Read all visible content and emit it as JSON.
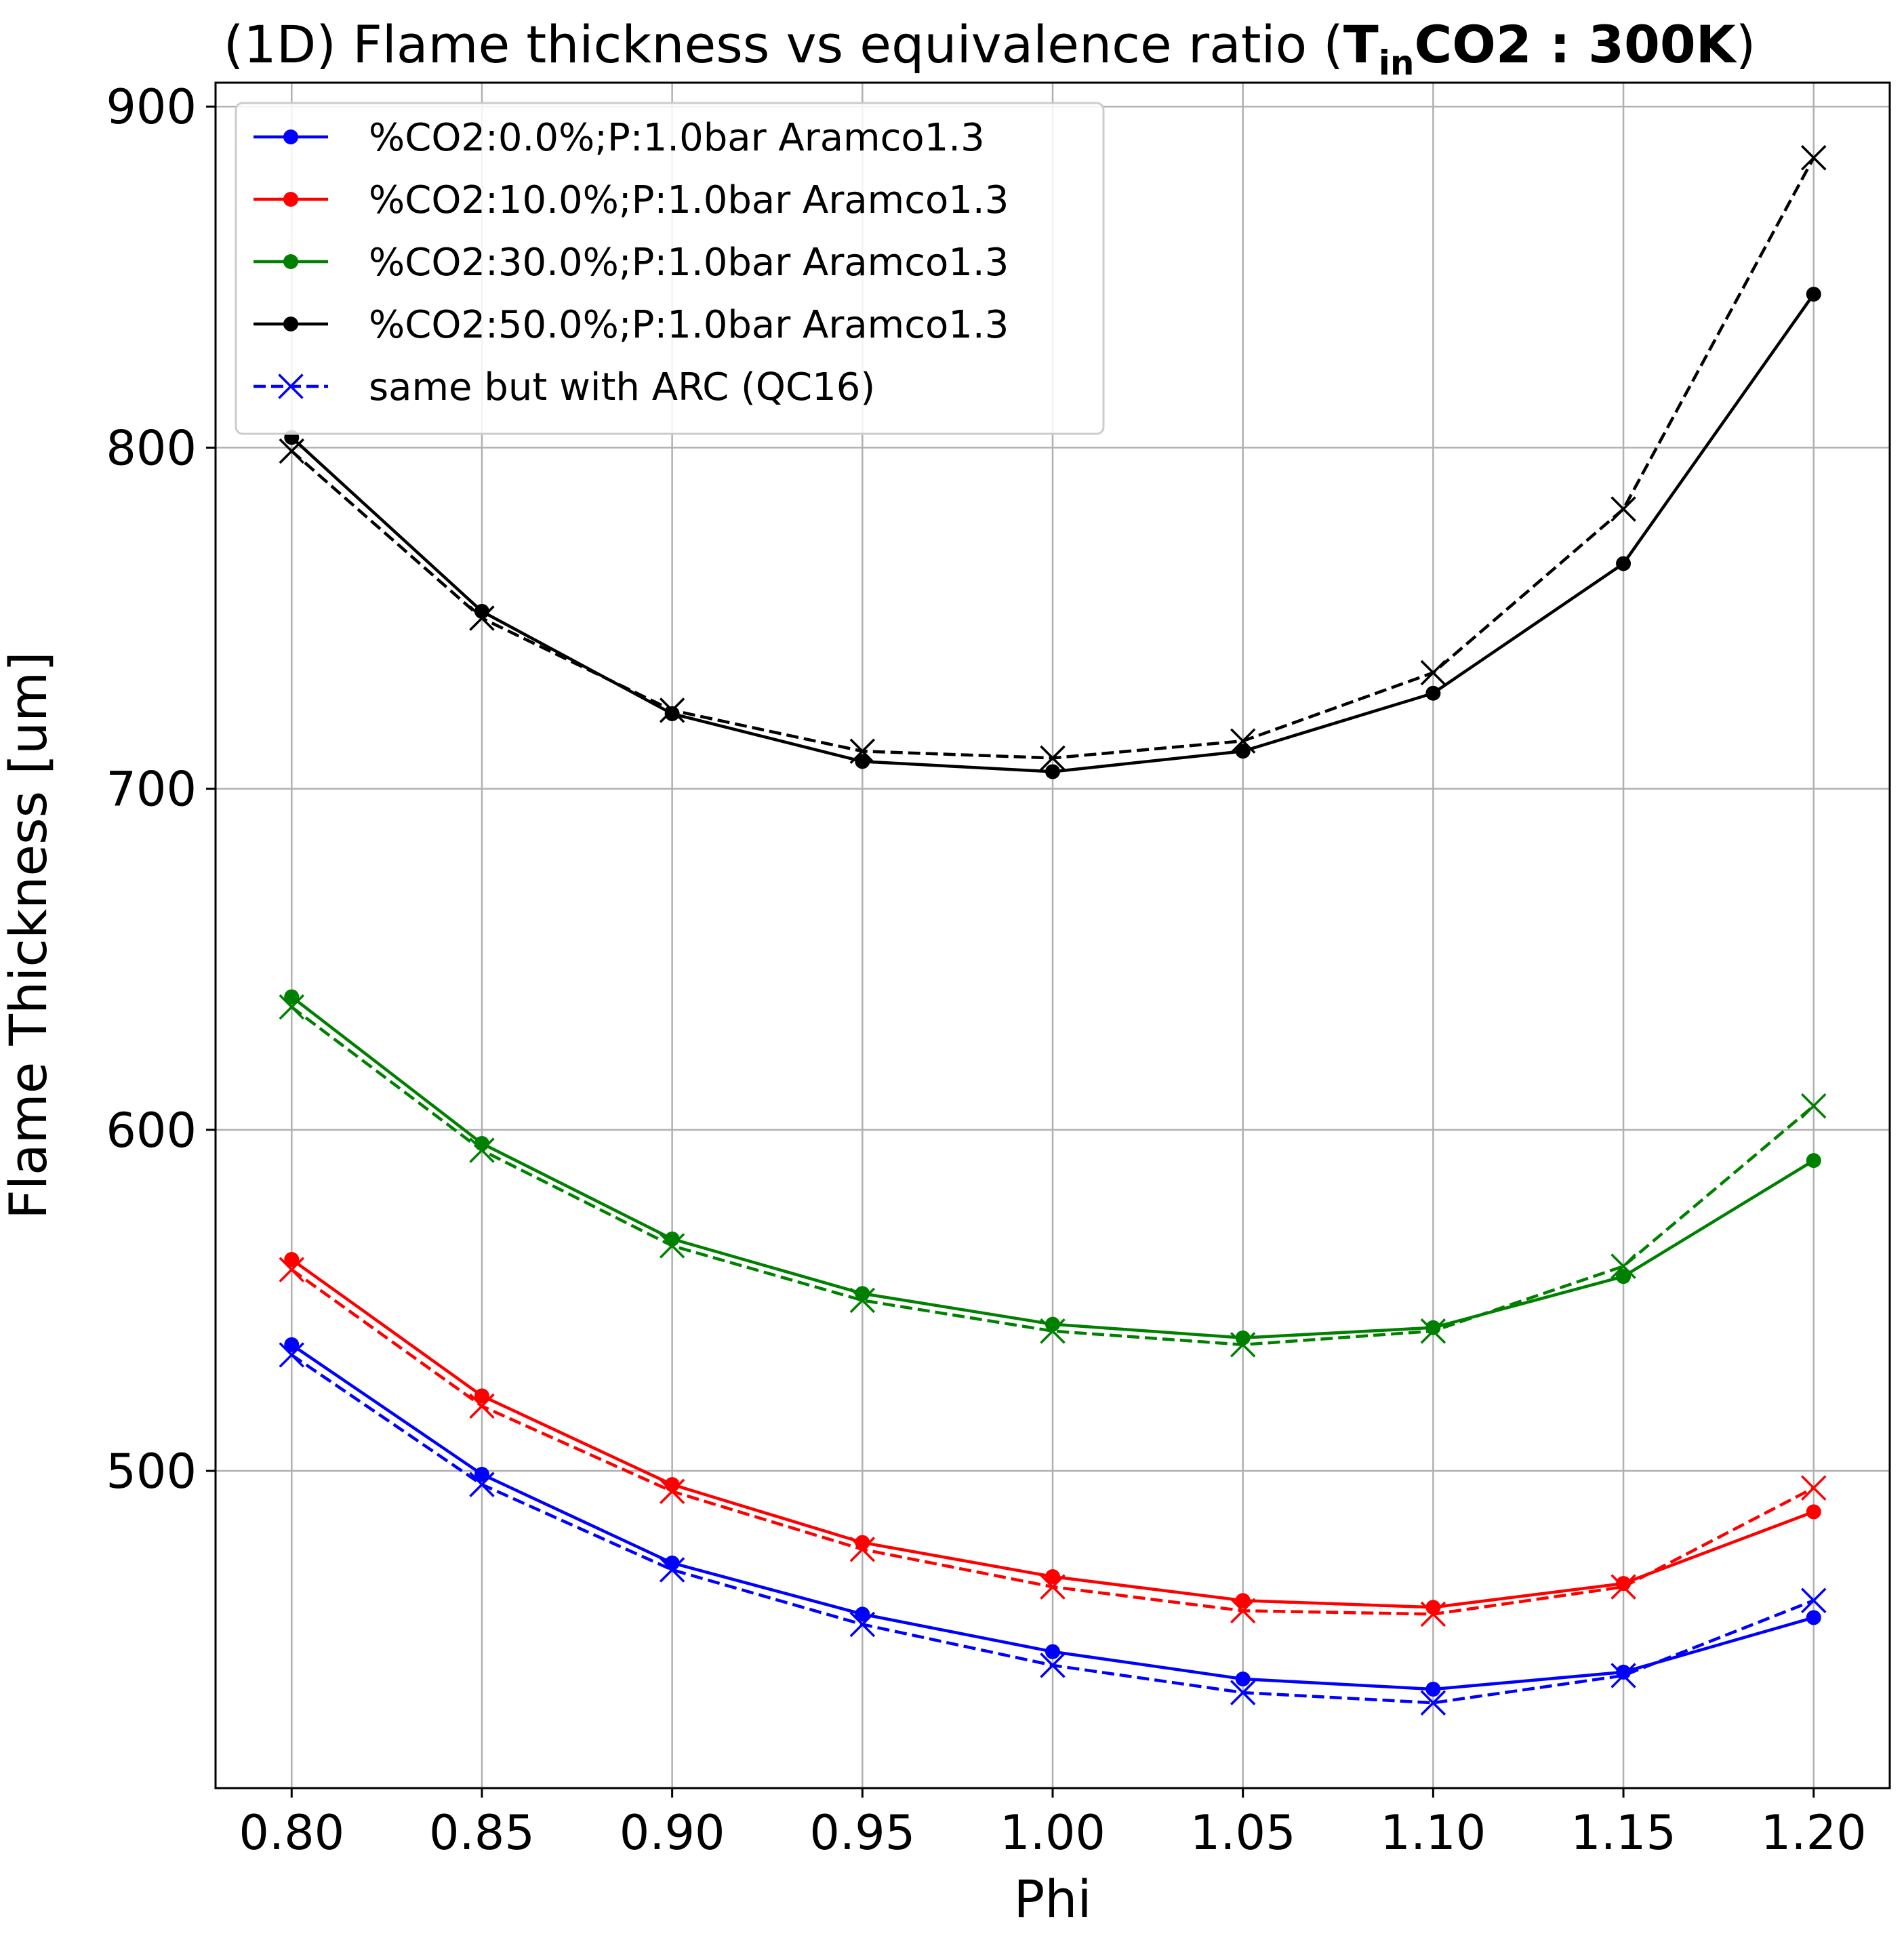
{
  "chart_data": {
    "type": "line",
    "title": {
      "prefix": "(1D) Flame thickness vs equivalence ratio (",
      "bold_main": "T",
      "bold_sub": "in",
      "bold_rest": "CO2 : 300K",
      "suffix": ")"
    },
    "xlabel": "Phi",
    "ylabel": "Flame Thickness [um]",
    "xlim": [
      0.78,
      1.22
    ],
    "ylim": [
      407,
      907
    ],
    "xticks": [
      "0.80",
      "0.85",
      "0.90",
      "0.95",
      "1.00",
      "1.05",
      "1.10",
      "1.15",
      "1.20"
    ],
    "yticks": [
      "500",
      "600",
      "700",
      "800",
      "900"
    ],
    "grid": true,
    "legend_position": "upper-left",
    "x": [
      0.8,
      0.85,
      0.9,
      0.95,
      1.0,
      1.05,
      1.1,
      1.15,
      1.2
    ],
    "series": [
      {
        "name": "%CO2:0.0%;P:1.0bar Aramco1.3",
        "color": "#0000ff",
        "marker": "circle",
        "line": "solid",
        "values": [
          537,
          499,
          473,
          458,
          447,
          439,
          436,
          441,
          457
        ]
      },
      {
        "name": "%CO2:10.0%;P:1.0bar Aramco1.3",
        "color": "#ff0000",
        "marker": "circle",
        "line": "solid",
        "values": [
          562,
          522,
          496,
          479,
          469,
          462,
          460,
          467,
          488
        ]
      },
      {
        "name": "%CO2:30.0%;P:1.0bar Aramco1.3",
        "color": "#008000",
        "marker": "circle",
        "line": "solid",
        "values": [
          639,
          596,
          568,
          552,
          543,
          539,
          542,
          557,
          591
        ]
      },
      {
        "name": "%CO2:50.0%;P:1.0bar Aramco1.3",
        "color": "#000000",
        "marker": "circle",
        "line": "solid",
        "values": [
          803,
          752,
          722,
          708,
          705,
          711,
          728,
          766,
          845
        ]
      },
      {
        "name": "same but with ARC (QC16)",
        "color": "#0000ff",
        "marker": "x",
        "line": "dashed",
        "values": [
          534,
          496,
          471,
          455,
          443,
          435,
          432,
          440,
          462
        ]
      },
      {
        "name": "",
        "color": "#ff0000",
        "marker": "x",
        "line": "dashed",
        "values": [
          559,
          519,
          494,
          477,
          466,
          459,
          458,
          466,
          495
        ]
      },
      {
        "name": "",
        "color": "#008000",
        "marker": "x",
        "line": "dashed",
        "values": [
          636,
          594,
          566,
          550,
          541,
          537,
          541,
          560,
          607
        ]
      },
      {
        "name": "",
        "color": "#000000",
        "marker": "x",
        "line": "dashed",
        "values": [
          799,
          750,
          723,
          711,
          709,
          714,
          734,
          782,
          885
        ]
      }
    ]
  }
}
